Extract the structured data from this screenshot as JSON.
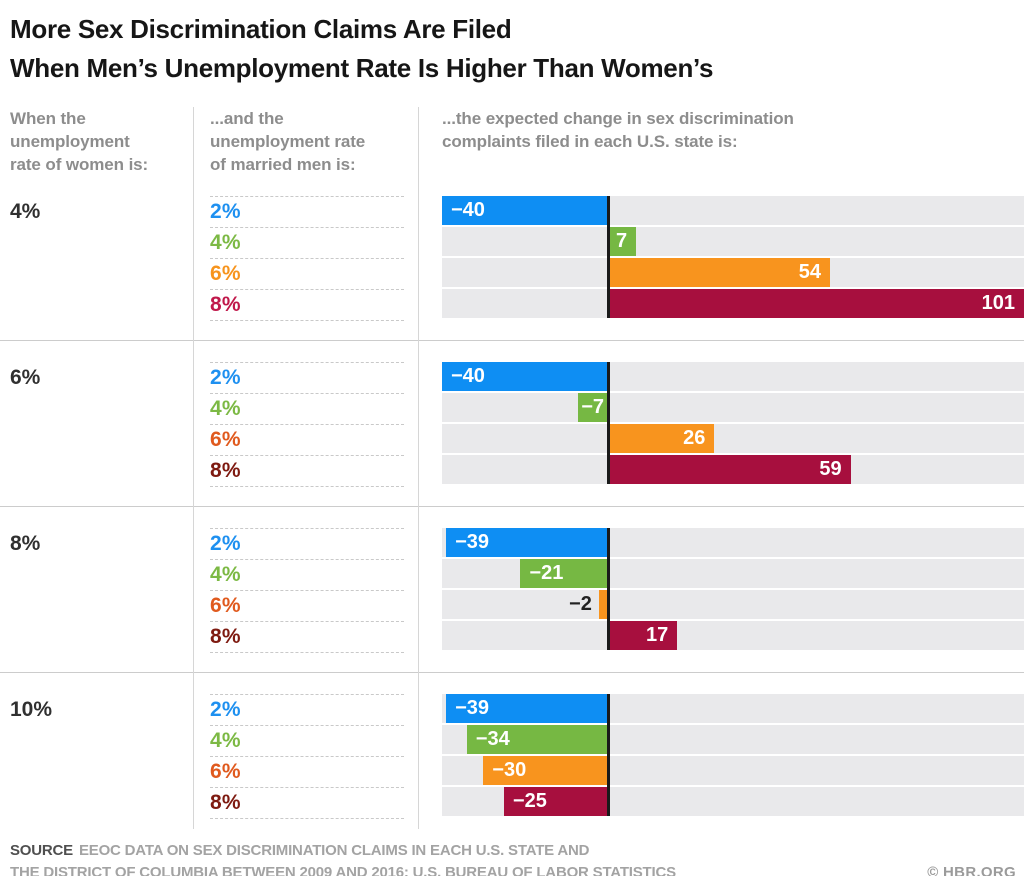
{
  "title": {
    "line1": "More Sex Discrimination Claims Are Filed",
    "line2": "When Men’s Unemployment Rate Is Higher Than Women’s"
  },
  "column_headers": {
    "women": "When the\nunemployment\nrate of women is:",
    "men": "...and the\nunemployment rate\nof married men is:",
    "bars": "...the expected change in sex discrimination\ncomplaints filed in each U.S. state is:"
  },
  "chart_data": {
    "type": "bar",
    "orientation": "horizontal",
    "value_axis_range": [
      -40,
      101
    ],
    "gridlines": false,
    "series_labels": [
      "2%",
      "4%",
      "6%",
      "8%"
    ],
    "series_meaning": "unemployment rate of married men",
    "bar_colors": [
      "#0e8ef3",
      "#76b843",
      "#f8941e",
      "#a70f3e"
    ],
    "track_color": "#e9e9eb",
    "zero_line_color": "#1a1a1a",
    "groups": [
      {
        "women_rate": "4%",
        "values": [
          -40,
          7,
          54,
          101
        ],
        "display": [
          "−40",
          "7",
          "54",
          "101"
        ],
        "rate_label_colors": [
          "#1e90f0",
          "#7cb944",
          "#f7941d",
          "#c0184a"
        ]
      },
      {
        "women_rate": "6%",
        "values": [
          -40,
          -7,
          26,
          59
        ],
        "display": [
          "−40",
          "−7",
          "26",
          "59"
        ],
        "rate_label_colors": [
          "#1e90f0",
          "#7cb944",
          "#e05a1e",
          "#7e1a10"
        ]
      },
      {
        "women_rate": "8%",
        "values": [
          -39,
          -21,
          -2,
          17
        ],
        "display": [
          "−39",
          "−21",
          "−2",
          "17"
        ],
        "rate_label_colors": [
          "#1e90f0",
          "#7cb944",
          "#e05a1e",
          "#7e1a10"
        ]
      },
      {
        "women_rate": "10%",
        "values": [
          -39,
          -34,
          -30,
          -25
        ],
        "display": [
          "−39",
          "−34",
          "−30",
          "−25"
        ],
        "rate_label_colors": [
          "#1e90f0",
          "#7cb944",
          "#e05a1e",
          "#7e1a10"
        ]
      }
    ]
  },
  "footer": {
    "source_tag": "SOURCE",
    "source_line1": "EEOC DATA ON SEX DISCRIMINATION CLAIMS IN EACH U.S. STATE AND",
    "source_line2": "THE DISTRICT OF COLUMBIA BETWEEN 2009 AND 2016; U.S. BUREAU OF LABOR STATISTICS",
    "credit": "© HBR.ORG"
  }
}
